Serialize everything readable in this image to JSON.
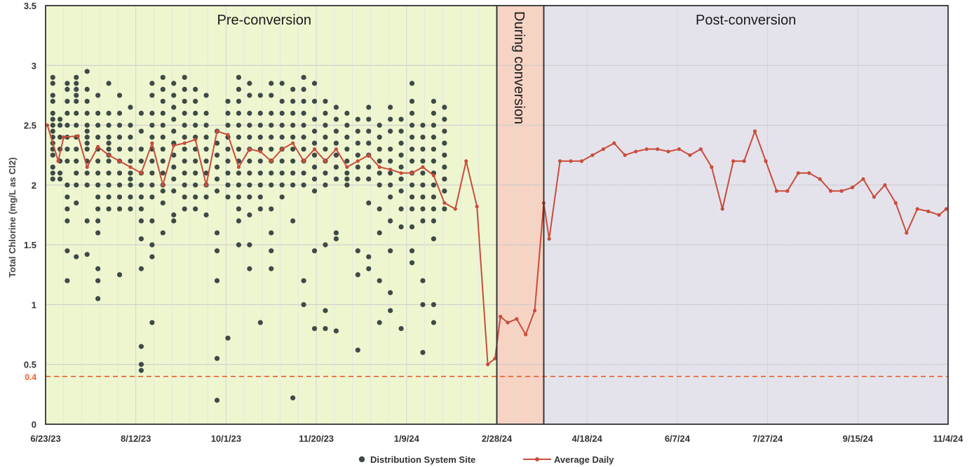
{
  "chart_data": {
    "type": "scatter",
    "title": "",
    "xlabel": "",
    "ylabel": "Total Chlorine (mg/L as Cl2)",
    "ylim": [
      0,
      3.5
    ],
    "yticks": [
      "0",
      "0.5",
      "1",
      "1.5",
      "2",
      "2.5",
      "3",
      "3.5"
    ],
    "x_tick_labels": [
      "6/23/23",
      "8/12/23",
      "10/1/23",
      "11/20/23",
      "1/9/24",
      "2/28/24",
      "4/18/24",
      "6/7/24",
      "7/27/24",
      "9/15/24",
      "11/4/24"
    ],
    "xlim": [
      "6/23/23",
      "11/4/24"
    ],
    "grid": true,
    "legend_position": "bottom",
    "regions": [
      {
        "label": "Pre-conversion",
        "start": "6/23/23",
        "end": "2/28/24",
        "color": "#eef6d0"
      },
      {
        "label": "During conversion",
        "start": "2/28/24",
        "end": "3/25/24",
        "color": "#f6d3c3"
      },
      {
        "label": "Post-conversion",
        "start": "3/25/24",
        "end": "11/4/24",
        "color": "#e4e3ec"
      }
    ],
    "threshold": {
      "value": 0.4,
      "label": "0.4",
      "color": "#e8602c"
    },
    "series": [
      {
        "name": "Distribution System Site",
        "marker": "dot",
        "color": "#3d4a46",
        "points": [
          {
            "x": "6/27/23",
            "y": [
              2.9,
              2.85,
              2.75,
              2.7,
              2.6,
              2.55,
              2.5,
              2.45,
              2.4,
              2.35,
              2.3,
              2.25,
              2.15,
              2.1,
              2.05
            ]
          },
          {
            "x": "7/1/23",
            "y": [
              2.55,
              2.5,
              2.4,
              2.3,
              2.2,
              2.1,
              2.05
            ]
          },
          {
            "x": "7/5/23",
            "y": [
              2.85,
              2.8,
              2.7,
              2.6,
              2.5,
              2.4,
              2.3,
              2.2,
              2.0,
              1.9,
              1.8,
              1.7,
              1.45,
              1.2
            ]
          },
          {
            "x": "7/10/23",
            "y": [
              2.9,
              2.85,
              2.8,
              2.75,
              2.7,
              2.6,
              2.5,
              2.4,
              2.3,
              2.2,
              2.1,
              2.0,
              1.85,
              1.4
            ]
          },
          {
            "x": "7/16/23",
            "y": [
              2.95,
              2.8,
              2.7,
              2.6,
              2.5,
              2.45,
              2.4,
              2.35,
              2.3,
              2.2,
              2.1,
              2.0,
              1.7,
              1.42
            ]
          },
          {
            "x": "7/22/23",
            "y": [
              2.75,
              2.6,
              2.5,
              2.4,
              2.3,
              2.2,
              2.1,
              2.0,
              1.9,
              1.8,
              1.7,
              1.6,
              1.3,
              1.2,
              1.05
            ]
          },
          {
            "x": "7/28/23",
            "y": [
              2.85,
              2.6,
              2.5,
              2.4,
              2.35,
              2.3,
              2.25,
              2.2,
              2.1,
              2.0,
              1.9,
              1.8
            ]
          },
          {
            "x": "8/3/23",
            "y": [
              2.75,
              2.6,
              2.5,
              2.4,
              2.3,
              2.2,
              2.1,
              2.0,
              1.9,
              1.8,
              1.25
            ]
          },
          {
            "x": "8/9/23",
            "y": [
              2.65,
              2.5,
              2.4,
              2.3,
              2.2,
              2.1,
              2.05,
              2.0,
              1.9,
              1.8
            ]
          },
          {
            "x": "8/15/23",
            "y": [
              2.6,
              2.45,
              2.3,
              2.2,
              2.1,
              2.0,
              1.9,
              1.8,
              1.7,
              1.55,
              1.3,
              0.65,
              0.5,
              0.45
            ]
          },
          {
            "x": "8/21/23",
            "y": [
              2.85,
              2.75,
              2.6,
              2.5,
              2.4,
              2.3,
              2.2,
              2.1,
              2.0,
              1.9,
              1.7,
              1.5,
              1.4,
              0.85
            ]
          },
          {
            "x": "8/27/23",
            "y": [
              2.9,
              2.8,
              2.7,
              2.6,
              2.5,
              2.4,
              2.3,
              2.2,
              2.1,
              2.0,
              1.95,
              1.85,
              1.6
            ]
          },
          {
            "x": "9/2/23",
            "y": [
              2.85,
              2.75,
              2.65,
              2.55,
              2.45,
              2.35,
              2.25,
              2.15,
              2.05,
              1.95,
              1.75,
              1.7
            ]
          },
          {
            "x": "9/8/23",
            "y": [
              2.9,
              2.8,
              2.7,
              2.6,
              2.5,
              2.4,
              2.3,
              2.2,
              2.1,
              2.0,
              1.9,
              1.8
            ]
          },
          {
            "x": "9/14/23",
            "y": [
              2.8,
              2.7,
              2.6,
              2.5,
              2.4,
              2.3,
              2.2,
              2.1,
              2.0,
              1.9,
              1.8
            ]
          },
          {
            "x": "9/20/23",
            "y": [
              2.75,
              2.6,
              2.5,
              2.4,
              2.3,
              2.2,
              2.1,
              2.0,
              1.9,
              1.75
            ]
          },
          {
            "x": "9/26/23",
            "y": [
              2.45,
              2.35,
              2.25,
              2.15,
              2.05,
              1.95,
              1.6,
              1.45,
              1.2,
              0.55,
              0.2
            ]
          },
          {
            "x": "10/2/23",
            "y": [
              2.7,
              2.6,
              2.5,
              2.4,
              2.3,
              2.2,
              2.1,
              2.0,
              1.9,
              0.72
            ]
          },
          {
            "x": "10/8/23",
            "y": [
              2.9,
              2.8,
              2.7,
              2.6,
              2.5,
              2.4,
              2.3,
              2.2,
              2.1,
              2.0,
              1.9,
              1.8,
              1.7,
              1.5
            ]
          },
          {
            "x": "10/14/23",
            "y": [
              2.85,
              2.75,
              2.6,
              2.5,
              2.4,
              2.3,
              2.2,
              2.1,
              2.0,
              1.9,
              1.75,
              1.5,
              1.3
            ]
          },
          {
            "x": "10/20/23",
            "y": [
              2.75,
              2.6,
              2.5,
              2.4,
              2.3,
              2.2,
              2.1,
              2.0,
              1.9,
              1.8,
              0.85
            ]
          },
          {
            "x": "10/26/23",
            "y": [
              2.85,
              2.75,
              2.6,
              2.5,
              2.4,
              2.3,
              2.2,
              2.1,
              2.0,
              1.8,
              1.6,
              1.45,
              1.3
            ]
          },
          {
            "x": "11/1/23",
            "y": [
              2.85,
              2.7,
              2.6,
              2.5,
              2.4,
              2.3,
              2.2,
              2.1,
              2.0,
              1.9
            ]
          },
          {
            "x": "11/7/23",
            "y": [
              2.8,
              2.7,
              2.6,
              2.5,
              2.4,
              2.3,
              2.2,
              2.1,
              2.0,
              1.7,
              0.22
            ]
          },
          {
            "x": "11/13/23",
            "y": [
              2.9,
              2.8,
              2.7,
              2.6,
              2.5,
              2.4,
              2.3,
              2.2,
              2.1,
              2.0,
              1.2,
              1.0
            ]
          },
          {
            "x": "11/19/23",
            "y": [
              2.85,
              2.7,
              2.55,
              2.45,
              2.35,
              2.25,
              2.15,
              2.05,
              1.95,
              1.45,
              0.8
            ]
          },
          {
            "x": "11/25/23",
            "y": [
              2.7,
              2.6,
              2.5,
              2.4,
              2.3,
              2.2,
              2.1,
              2.0,
              1.5,
              0.95,
              0.8
            ]
          },
          {
            "x": "12/1/23",
            "y": [
              2.65,
              2.55,
              2.45,
              2.35,
              2.25,
              2.15,
              2.05,
              1.6,
              1.55,
              0.78
            ]
          },
          {
            "x": "12/7/23",
            "y": [
              2.6,
              2.5,
              2.4,
              2.3,
              2.2,
              2.1,
              2.05,
              2.0
            ]
          },
          {
            "x": "12/13/23",
            "y": [
              2.55,
              2.45,
              2.35,
              2.25,
              2.15,
              2.05,
              1.45,
              1.25,
              0.62
            ]
          },
          {
            "x": "12/19/23",
            "y": [
              2.65,
              2.55,
              2.45,
              2.35,
              2.25,
              2.15,
              2.05,
              1.4,
              1.3,
              1.85
            ]
          },
          {
            "x": "12/25/23",
            "y": [
              2.5,
              2.4,
              2.3,
              2.2,
              2.1,
              2.0,
              1.8,
              1.6,
              1.2,
              0.85
            ]
          },
          {
            "x": "12/31/23",
            "y": [
              2.65,
              2.55,
              2.45,
              2.3,
              2.2,
              2.1,
              2.0,
              1.9,
              1.7,
              1.45,
              1.1,
              0.95
            ]
          },
          {
            "x": "1/6/24",
            "y": [
              2.55,
              2.45,
              2.35,
              2.25,
              2.15,
              2.05,
              1.95,
              1.8,
              1.65,
              0.8
            ]
          },
          {
            "x": "1/12/24",
            "y": [
              2.85,
              2.7,
              2.6,
              2.5,
              2.4,
              2.3,
              2.2,
              2.1,
              2.0,
              1.9,
              1.8,
              1.65,
              1.45,
              1.35
            ]
          },
          {
            "x": "1/18/24",
            "y": [
              2.5,
              2.4,
              2.3,
              2.2,
              2.1,
              2.0,
              1.9,
              1.8,
              1.7,
              1.2,
              1.0,
              0.6
            ]
          },
          {
            "x": "1/24/24",
            "y": [
              2.7,
              2.6,
              2.5,
              2.4,
              2.3,
              2.2,
              2.1,
              2.0,
              1.9,
              1.8,
              1.7,
              1.55,
              1.0,
              0.85
            ]
          },
          {
            "x": "1/30/24",
            "y": [
              2.65,
              2.55,
              2.45,
              2.35,
              2.25,
              2.15,
              2.05,
              1.95,
              1.8
            ]
          }
        ]
      },
      {
        "name": "Average Daily",
        "marker": "line",
        "color": "#c94c3c",
        "x": [
          "6/24/23",
          "6/30/23",
          "7/3/23",
          "7/11/23",
          "7/16/23",
          "7/22/23",
          "7/28/23",
          "8/3/23",
          "8/9/23",
          "8/15/23",
          "8/21/23",
          "8/27/23",
          "9/2/23",
          "9/8/23",
          "9/14/23",
          "9/20/23",
          "9/26/23",
          "10/2/23",
          "10/8/23",
          "10/14/23",
          "10/20/23",
          "10/26/23",
          "11/1/23",
          "11/7/23",
          "11/13/23",
          "11/19/23",
          "11/25/23",
          "12/1/23",
          "12/7/23",
          "12/13/23",
          "12/19/23",
          "12/25/23",
          "12/31/23",
          "1/6/24",
          "1/12/24",
          "1/18/24",
          "1/24/24",
          "1/30/24",
          "2/5/24",
          "2/11/24",
          "2/17/24",
          "2/23/24",
          "2/27/24",
          "3/1/24",
          "3/5/24",
          "3/10/24",
          "3/15/24",
          "3/20/24",
          "3/25/24",
          "3/28/24",
          "4/3/24",
          "4/9/24",
          "4/15/24",
          "4/21/24",
          "4/27/24",
          "5/3/24",
          "5/9/24",
          "5/15/24",
          "5/21/24",
          "5/27/24",
          "6/2/24",
          "6/8/24",
          "6/14/24",
          "6/20/24",
          "6/26/24",
          "7/2/24",
          "7/8/24",
          "7/14/24",
          "7/20/24",
          "7/26/24",
          "8/1/24",
          "8/7/24",
          "8/13/24",
          "8/19/24",
          "8/25/24",
          "8/31/24",
          "9/6/24",
          "9/12/24",
          "9/18/24",
          "9/24/24",
          "9/30/24",
          "10/6/24",
          "10/12/24",
          "10/18/24",
          "10/24/24",
          "10/30/24",
          "11/3/24"
        ],
        "y": [
          2.5,
          2.2,
          2.4,
          2.41,
          2.15,
          2.32,
          2.25,
          2.2,
          2.15,
          2.1,
          2.35,
          2.0,
          2.33,
          2.35,
          2.38,
          2.0,
          2.45,
          2.42,
          2.15,
          2.3,
          2.28,
          2.2,
          2.3,
          2.35,
          2.2,
          2.3,
          2.2,
          2.3,
          2.15,
          2.2,
          2.25,
          2.15,
          2.13,
          2.1,
          2.1,
          2.15,
          2.08,
          1.85,
          1.8,
          2.2,
          1.82,
          0.5,
          0.55,
          0.9,
          0.85,
          0.88,
          0.75,
          0.95,
          1.85,
          1.55,
          2.2,
          2.2,
          2.2,
          2.25,
          2.3,
          2.35,
          2.25,
          2.28,
          2.3,
          2.3,
          2.28,
          2.3,
          2.25,
          2.3,
          2.15,
          1.8,
          2.2,
          2.2,
          2.45,
          2.2,
          1.95,
          1.95,
          2.1,
          2.1,
          2.05,
          1.95,
          1.95,
          1.98,
          2.05,
          1.9,
          2.0,
          1.85,
          1.6,
          1.8,
          1.78,
          1.75,
          1.8
        ]
      }
    ]
  }
}
